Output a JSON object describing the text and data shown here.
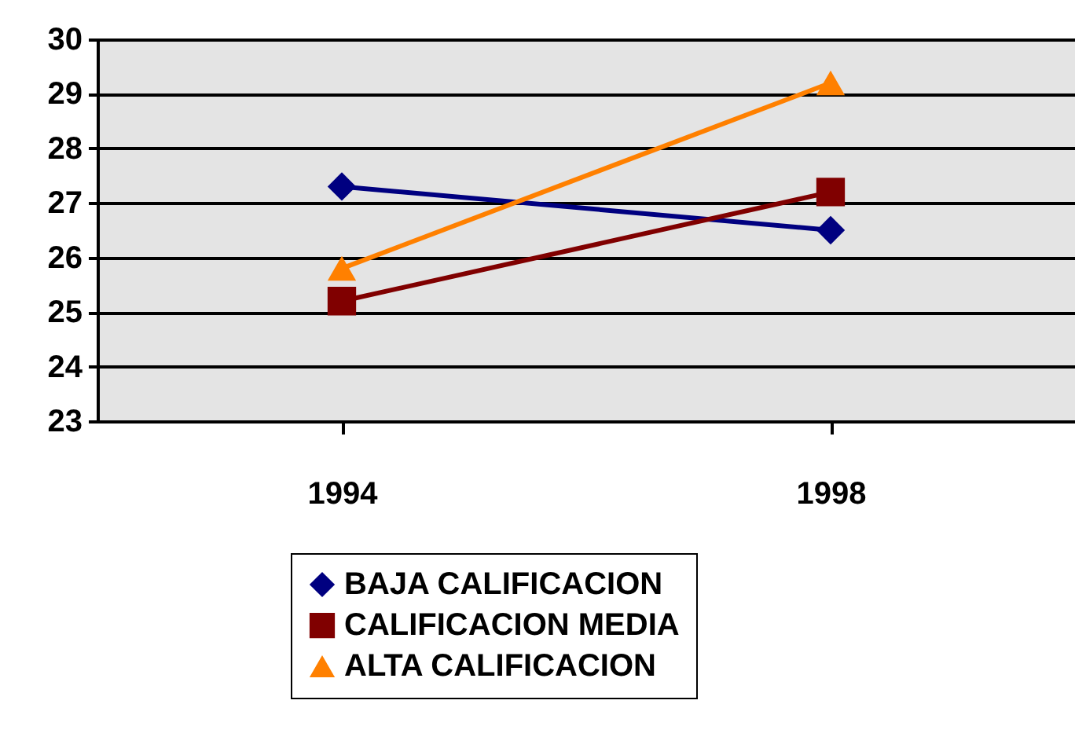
{
  "chart_data": {
    "type": "line",
    "categories": [
      "1994",
      "1998"
    ],
    "ylim": [
      23,
      30
    ],
    "yticks": [
      23,
      24,
      25,
      26,
      27,
      28,
      29,
      30
    ],
    "grid": "y",
    "legend": "bottom",
    "series": [
      {
        "name": "BAJA CALIFICACION",
        "color": "#000080",
        "marker": "diamond",
        "values": [
          27.3,
          26.5
        ]
      },
      {
        "name": "CALIFICACION MEDIA",
        "color": "#800000",
        "marker": "square",
        "values": [
          25.2,
          27.2
        ]
      },
      {
        "name": "ALTA CALIFICACION",
        "color": "#ff8000",
        "marker": "triangle",
        "values": [
          25.8,
          29.2
        ]
      }
    ]
  }
}
